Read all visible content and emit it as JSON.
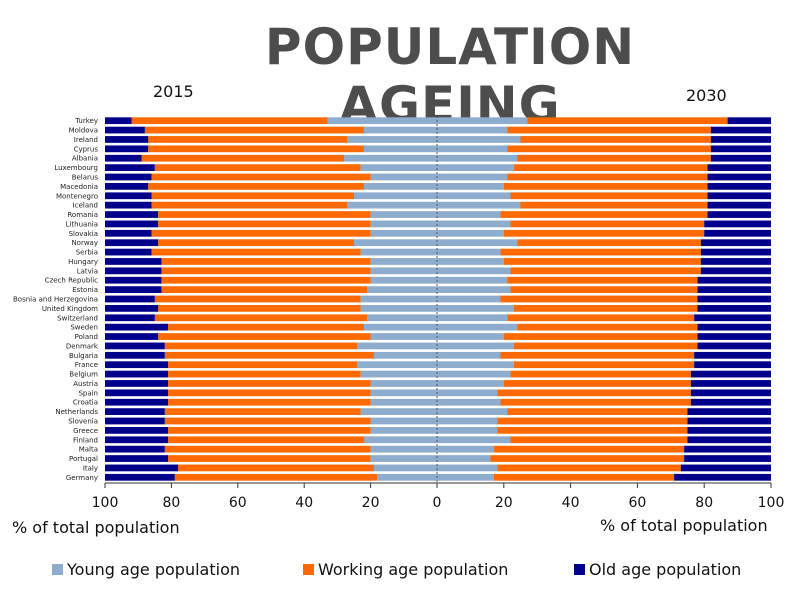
{
  "page": {
    "title": "POPULATION AGEING",
    "left_year": "2015",
    "right_year": "2030",
    "left_axis_label": "% of total population",
    "right_axis_label": "% of total population"
  },
  "legend": [
    {
      "label": "Young age population",
      "color": "#8EACCD"
    },
    {
      "label": "Working age population",
      "color": "#FF6A00"
    },
    {
      "label": "Old age population",
      "color": "#00008B"
    }
  ],
  "chart_data": [
    {
      "type": "bar",
      "orientation": "horizontal-stacked",
      "title": "2015",
      "xlabel": "% of total population",
      "xlim": [
        100,
        0
      ],
      "x_ticks": [
        "100",
        "80",
        "60",
        "40",
        "20",
        "0"
      ],
      "categories": [
        "Turkey",
        "Moldova",
        "Ireland",
        "Cyprus",
        "Albania",
        "Luxembourg",
        "Belarus",
        "Macedonia",
        "Montenegro",
        "Iceland",
        "Romania",
        "Lithuania",
        "Slovakia",
        "Norway",
        "Serbia",
        "Hungary",
        "Latvia",
        "Czech Republic",
        "Estonia",
        "Bosnia and Herzegovina",
        "United Kingdom",
        "Switzerland",
        "Sweden",
        "Poland",
        "Denmark",
        "Bulgaria",
        "France",
        "Belgium",
        "Austria",
        "Spain",
        "Croatia",
        "Netherlands",
        "Slovenia",
        "Greece",
        "Finland",
        "Malta",
        "Portugal",
        "Italy",
        "Germany"
      ],
      "series": [
        {
          "name": "Young age population",
          "values": [
            33,
            22,
            27,
            22,
            28,
            23,
            20,
            22,
            25,
            27,
            20,
            20,
            20,
            25,
            23,
            20,
            20,
            20,
            21,
            23,
            23,
            21,
            22,
            20,
            24,
            19,
            24,
            23,
            20,
            20,
            20,
            23,
            20,
            20,
            22,
            20,
            20,
            19,
            18
          ]
        },
        {
          "name": "Working age population",
          "values": [
            59,
            66,
            60,
            65,
            61,
            62,
            66,
            65,
            61,
            59,
            64,
            64,
            66,
            59,
            63,
            63,
            63,
            63,
            62,
            62,
            61,
            64,
            59,
            64,
            58,
            63,
            57,
            58,
            61,
            61,
            61,
            59,
            62,
            61,
            59,
            62,
            61,
            59,
            61
          ]
        },
        {
          "name": "Old age population",
          "values": [
            8,
            12,
            13,
            13,
            11,
            15,
            14,
            13,
            14,
            14,
            16,
            16,
            14,
            16,
            14,
            17,
            17,
            17,
            17,
            15,
            16,
            15,
            19,
            16,
            18,
            18,
            19,
            19,
            19,
            19,
            19,
            18,
            18,
            19,
            19,
            18,
            19,
            22,
            21
          ]
        }
      ]
    },
    {
      "type": "bar",
      "orientation": "horizontal-stacked",
      "title": "2030",
      "xlabel": "% of total population",
      "xlim": [
        0,
        100
      ],
      "x_ticks": [
        "0",
        "20",
        "40",
        "60",
        "80",
        "100"
      ],
      "categories": [
        "Turkey",
        "Moldova",
        "Ireland",
        "Cyprus",
        "Albania",
        "Luxembourg",
        "Belarus",
        "Macedonia",
        "Montenegro",
        "Iceland",
        "Romania",
        "Lithuania",
        "Slovakia",
        "Norway",
        "Serbia",
        "Hungary",
        "Latvia",
        "Czech Republic",
        "Estonia",
        "Bosnia and Herzegovina",
        "United Kingdom",
        "Switzerland",
        "Sweden",
        "Poland",
        "Denmark",
        "Bulgaria",
        "France",
        "Belgium",
        "Austria",
        "Spain",
        "Croatia",
        "Netherlands",
        "Slovenia",
        "Greece",
        "Finland",
        "Malta",
        "Portugal",
        "Italy",
        "Germany"
      ],
      "series": [
        {
          "name": "Young age population",
          "values": [
            27,
            21,
            25,
            21,
            24,
            23,
            21,
            20,
            22,
            25,
            19,
            22,
            20,
            24,
            19,
            20,
            22,
            21,
            22,
            19,
            23,
            21,
            24,
            20,
            23,
            19,
            23,
            22,
            20,
            18,
            19,
            21,
            18,
            18,
            22,
            17,
            16,
            18,
            17
          ]
        },
        {
          "name": "Working age population",
          "values": [
            60,
            61,
            57,
            61,
            58,
            58,
            60,
            61,
            59,
            56,
            62,
            58,
            60,
            55,
            60,
            59,
            57,
            57,
            56,
            59,
            55,
            56,
            54,
            58,
            55,
            58,
            54,
            54,
            56,
            58,
            57,
            54,
            57,
            57,
            53,
            57,
            58,
            55,
            54
          ]
        },
        {
          "name": "Old age population",
          "values": [
            13,
            18,
            18,
            18,
            18,
            19,
            19,
            19,
            19,
            19,
            19,
            20,
            20,
            21,
            21,
            21,
            21,
            22,
            22,
            22,
            22,
            23,
            22,
            22,
            22,
            23,
            23,
            24,
            24,
            24,
            24,
            25,
            25,
            25,
            25,
            26,
            26,
            27,
            29
          ]
        }
      ]
    }
  ]
}
